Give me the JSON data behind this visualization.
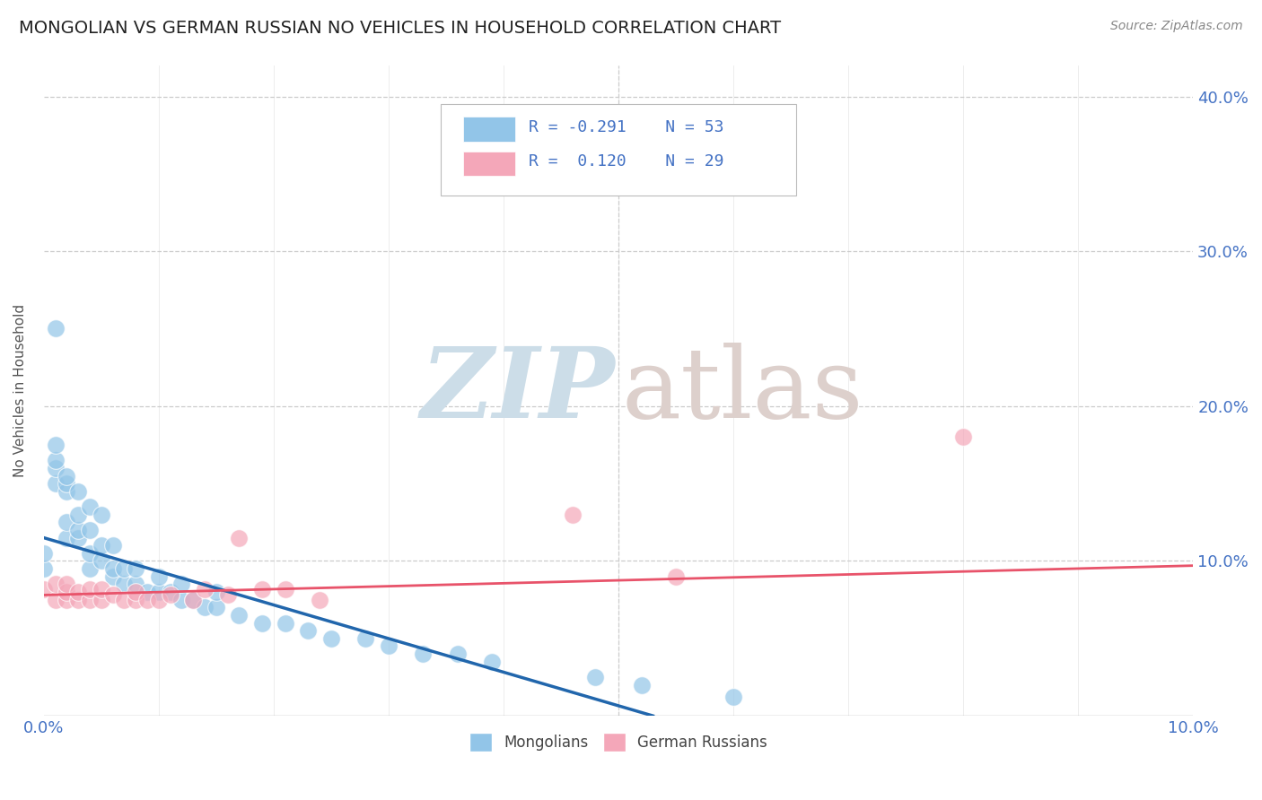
{
  "title": "MONGOLIAN VS GERMAN RUSSIAN NO VEHICLES IN HOUSEHOLD CORRELATION CHART",
  "source": "Source: ZipAtlas.com",
  "ylabel": "No Vehicles in Household",
  "ytick_labels": [
    "",
    "10.0%",
    "20.0%",
    "30.0%",
    "40.0%"
  ],
  "ytick_values": [
    0.0,
    0.1,
    0.2,
    0.3,
    0.4
  ],
  "xlim": [
    0.0,
    0.1
  ],
  "ylim": [
    0.0,
    0.42
  ],
  "legend_r1": "R = -0.291",
  "legend_n1": "N = 53",
  "legend_r2": "R =  0.120",
  "legend_n2": "N = 29",
  "color_mongolian": "#92c5e8",
  "color_german_russian": "#f4a7b9",
  "color_line_mongolian": "#2166ac",
  "color_line_german_russian": "#e8536a",
  "mongolian_scatter_x": [
    0.0,
    0.0,
    0.001,
    0.001,
    0.001,
    0.001,
    0.001,
    0.002,
    0.002,
    0.002,
    0.002,
    0.002,
    0.003,
    0.003,
    0.003,
    0.003,
    0.004,
    0.004,
    0.004,
    0.004,
    0.005,
    0.005,
    0.005,
    0.006,
    0.006,
    0.006,
    0.007,
    0.007,
    0.008,
    0.008,
    0.009,
    0.01,
    0.01,
    0.011,
    0.012,
    0.012,
    0.013,
    0.014,
    0.015,
    0.015,
    0.017,
    0.019,
    0.021,
    0.023,
    0.025,
    0.028,
    0.03,
    0.033,
    0.036,
    0.039,
    0.048,
    0.052,
    0.06
  ],
  "mongolian_scatter_y": [
    0.095,
    0.105,
    0.15,
    0.16,
    0.165,
    0.175,
    0.25,
    0.115,
    0.125,
    0.145,
    0.15,
    0.155,
    0.115,
    0.12,
    0.13,
    0.145,
    0.095,
    0.105,
    0.12,
    0.135,
    0.1,
    0.11,
    0.13,
    0.09,
    0.095,
    0.11,
    0.085,
    0.095,
    0.085,
    0.095,
    0.08,
    0.08,
    0.09,
    0.08,
    0.075,
    0.085,
    0.075,
    0.07,
    0.07,
    0.08,
    0.065,
    0.06,
    0.06,
    0.055,
    0.05,
    0.05,
    0.045,
    0.04,
    0.04,
    0.035,
    0.025,
    0.02,
    0.012
  ],
  "german_russian_scatter_x": [
    0.0,
    0.001,
    0.001,
    0.002,
    0.002,
    0.002,
    0.003,
    0.003,
    0.004,
    0.004,
    0.005,
    0.005,
    0.006,
    0.007,
    0.008,
    0.008,
    0.009,
    0.01,
    0.011,
    0.013,
    0.014,
    0.016,
    0.017,
    0.019,
    0.021,
    0.024,
    0.046,
    0.055,
    0.08
  ],
  "german_russian_scatter_y": [
    0.082,
    0.075,
    0.085,
    0.075,
    0.08,
    0.085,
    0.075,
    0.08,
    0.075,
    0.082,
    0.075,
    0.082,
    0.078,
    0.075,
    0.075,
    0.08,
    0.075,
    0.075,
    0.078,
    0.075,
    0.082,
    0.078,
    0.115,
    0.082,
    0.082,
    0.075,
    0.13,
    0.09,
    0.18
  ],
  "mongolian_line_x": [
    0.0,
    0.053
  ],
  "mongolian_line_y": [
    0.115,
    0.0
  ],
  "german_russian_line_x": [
    0.0,
    0.1
  ],
  "german_russian_line_y": [
    0.078,
    0.097
  ],
  "grid_color": "#cccccc",
  "background_color": "#ffffff",
  "title_color": "#222222",
  "axis_color": "#4472c4",
  "watermark_color_zip": "#ccdde8",
  "watermark_color_atlas": "#ddd0cc"
}
